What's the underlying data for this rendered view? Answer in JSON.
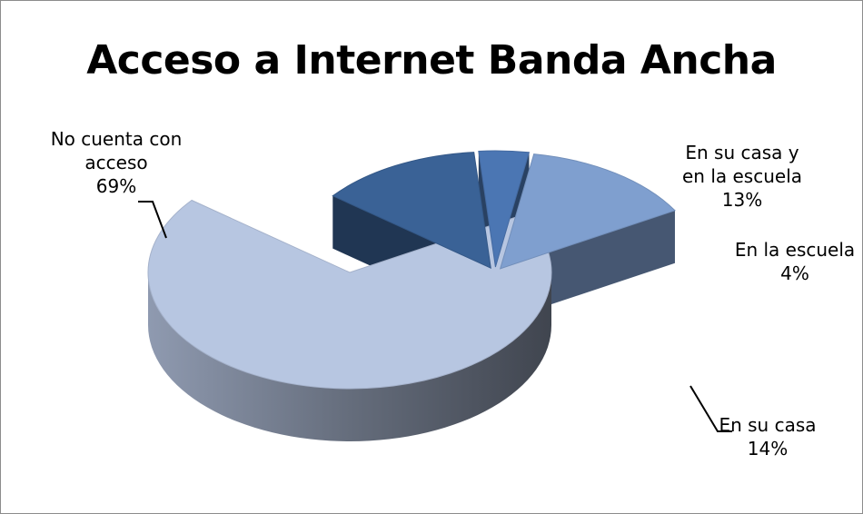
{
  "chart_data": {
    "type": "pie",
    "title": "Acceso a Internet Banda Ancha",
    "style": "3d-exploded",
    "legend": "none",
    "slices": [
      {
        "name": "No cuenta con acceso",
        "value": 69,
        "label_lines": [
          "No cuenta con",
          "acceso",
          "69%"
        ],
        "color": "#b7c6e1"
      },
      {
        "name": "En su casa y en la escuela",
        "value": 13,
        "label_lines": [
          "En su casa y",
          "en la escuela",
          "13%"
        ],
        "color": "#3a6296"
      },
      {
        "name": "En la escuela",
        "value": 4,
        "label_lines": [
          "En la escuela",
          "4%"
        ],
        "color": "#4b76b3"
      },
      {
        "name": "En su casa",
        "value": 14,
        "label_lines": [
          "En su casa",
          "14%"
        ],
        "color": "#7f9fcf"
      }
    ]
  }
}
